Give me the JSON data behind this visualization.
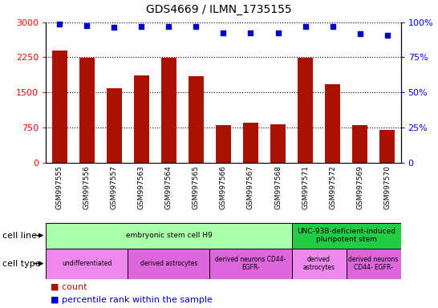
{
  "title": "GDS4669 / ILMN_1735155",
  "samples": [
    "GSM997555",
    "GSM997556",
    "GSM997557",
    "GSM997563",
    "GSM997564",
    "GSM997565",
    "GSM997566",
    "GSM997567",
    "GSM997568",
    "GSM997571",
    "GSM997572",
    "GSM997569",
    "GSM997570"
  ],
  "counts": [
    2400,
    2240,
    1590,
    1860,
    2240,
    1840,
    800,
    850,
    820,
    2240,
    1670,
    800,
    700
  ],
  "percentiles": [
    98.5,
    97.5,
    96.5,
    97.0,
    97.0,
    97.0,
    92.5,
    92.5,
    92.5,
    97.0,
    97.0,
    92.0,
    90.5
  ],
  "ylim_left": [
    0,
    3000
  ],
  "ylim_right": [
    0,
    100
  ],
  "yticks_left": [
    0,
    750,
    1500,
    2250,
    3000
  ],
  "yticks_right": [
    0,
    25,
    50,
    75,
    100
  ],
  "bar_color": "#aa1100",
  "dot_color": "#0000cc",
  "cell_line_groups": [
    {
      "label": "embryonic stem cell H9",
      "start": 0,
      "end": 9,
      "color": "#aaffaa"
    },
    {
      "label": "UNC-93B-deficient-induced\npluripotent stem",
      "start": 9,
      "end": 13,
      "color": "#22cc44"
    }
  ],
  "cell_type_groups": [
    {
      "label": "undifferentiated",
      "start": 0,
      "end": 3,
      "color": "#ee88ee"
    },
    {
      "label": "derived astrocytes",
      "start": 3,
      "end": 6,
      "color": "#dd66dd"
    },
    {
      "label": "derived neurons CD44-\nEGFR-",
      "start": 6,
      "end": 9,
      "color": "#dd66dd"
    },
    {
      "label": "derived\nastrocytes",
      "start": 9,
      "end": 11,
      "color": "#ee88ee"
    },
    {
      "label": "derived neurons\nCD44- EGFR-",
      "start": 11,
      "end": 13,
      "color": "#dd66dd"
    }
  ],
  "legend_count_color": "#aa1100",
  "legend_dot_color": "#0000cc",
  "tick_area_bg": "#cccccc"
}
